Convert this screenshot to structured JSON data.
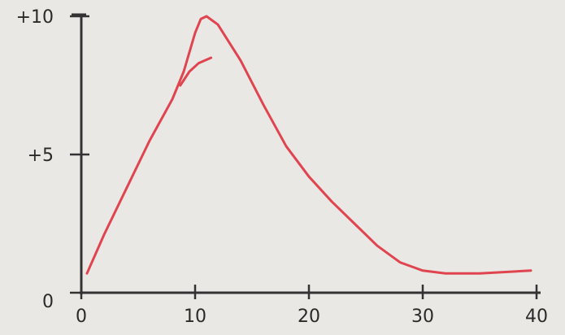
{
  "chart_data": {
    "type": "line",
    "xlim": [
      0,
      40
    ],
    "ylim": [
      0,
      10
    ],
    "xticks": [
      0,
      10,
      20,
      30,
      40
    ],
    "yticks": [
      {
        "value": 0,
        "label": "0"
      },
      {
        "value": 5,
        "label": "+5"
      },
      {
        "value": 10,
        "label": "+10"
      }
    ],
    "series": [
      {
        "color": "#e0444f",
        "x": [
          0.5,
          2,
          4,
          6,
          8,
          9,
          10,
          10.5,
          11,
          12,
          14,
          16,
          18,
          20,
          22,
          24,
          26,
          28,
          30,
          32,
          35,
          39.5
        ],
        "values": [
          0.7,
          2.1,
          3.8,
          5.5,
          7.0,
          8.0,
          9.4,
          9.9,
          10,
          9.7,
          8.4,
          6.8,
          5.3,
          4.2,
          3.3,
          2.5,
          1.7,
          1.1,
          0.8,
          0.7,
          0.7,
          0.8
        ]
      },
      {
        "color": "#e0444f",
        "x": [
          8.7,
          9.5,
          10.3,
          11.4
        ],
        "values": [
          7.5,
          8.0,
          8.3,
          8.5
        ]
      }
    ]
  }
}
